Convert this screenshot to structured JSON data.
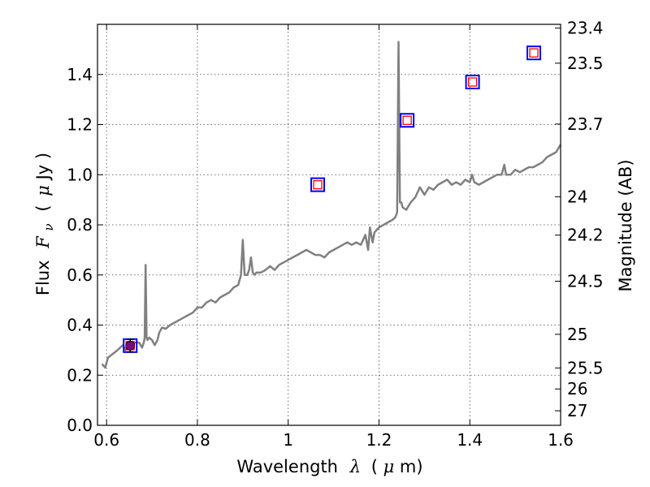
{
  "chart_data": {
    "type": "line",
    "xlabel": {
      "prefix": "Wavelength",
      "symbol": "λ",
      "unit_open": "(",
      "unit_mu": "μ",
      "unit_rest": "m)"
    },
    "ylabel": {
      "prefix": "Flux",
      "symbol": "F",
      "sub": "ν",
      "unit_open": "(",
      "unit_mu": "μ",
      "unit_rest": "Jy )"
    },
    "y2label": "Magnitude (AB)",
    "xlim": [
      0.58,
      1.6
    ],
    "ylim": [
      0.0,
      1.6
    ],
    "grid": true,
    "x_ticks": [
      {
        "value": 0.6,
        "label": "0.6"
      },
      {
        "value": 0.8,
        "label": "0.8"
      },
      {
        "value": 1.0,
        "label": "1"
      },
      {
        "value": 1.2,
        "label": "1.2"
      },
      {
        "value": 1.4,
        "label": "1.4"
      },
      {
        "value": 1.6,
        "label": "1.6"
      }
    ],
    "y_ticks": [
      {
        "value": 0.0,
        "label": "0.0"
      },
      {
        "value": 0.2,
        "label": "0.2"
      },
      {
        "value": 0.4,
        "label": "0.4"
      },
      {
        "value": 0.6,
        "label": "0.6"
      },
      {
        "value": 0.8,
        "label": "0.8"
      },
      {
        "value": 1.0,
        "label": "1.0"
      },
      {
        "value": 1.2,
        "label": "1.2"
      },
      {
        "value": 1.4,
        "label": "1.4"
      }
    ],
    "y2_ticks": [
      {
        "label": "23.4",
        "flux": 1.585
      },
      {
        "label": "23.5",
        "flux": 1.445
      },
      {
        "label": "23.7",
        "flux": 1.202
      },
      {
        "label": "24",
        "flux": 0.912
      },
      {
        "label": "24.2",
        "flux": 0.759
      },
      {
        "label": "24.5",
        "flux": 0.575
      },
      {
        "label": "25",
        "flux": 0.363
      },
      {
        "label": "25.5",
        "flux": 0.229
      },
      {
        "label": "26",
        "flux": 0.145
      },
      {
        "label": "27",
        "flux": 0.058
      }
    ],
    "series": [
      {
        "kind": "spectrum",
        "color": "#808080",
        "x": [
          0.59,
          0.597,
          0.603,
          0.61,
          0.617,
          0.624,
          0.63,
          0.636,
          0.642,
          0.65,
          0.658,
          0.665,
          0.672,
          0.678,
          0.682,
          0.684,
          0.686,
          0.688,
          0.69,
          0.694,
          0.7,
          0.706,
          0.712,
          0.716,
          0.722,
          0.73,
          0.74,
          0.75,
          0.76,
          0.77,
          0.78,
          0.79,
          0.8,
          0.81,
          0.82,
          0.83,
          0.84,
          0.85,
          0.86,
          0.87,
          0.88,
          0.89,
          0.896,
          0.9,
          0.904,
          0.91,
          0.914,
          0.918,
          0.922,
          0.926,
          0.93,
          0.94,
          0.95,
          0.96,
          0.97,
          0.98,
          0.99,
          1.0,
          1.01,
          1.02,
          1.03,
          1.04,
          1.05,
          1.06,
          1.07,
          1.08,
          1.09,
          1.1,
          1.11,
          1.12,
          1.13,
          1.14,
          1.15,
          1.16,
          1.17,
          1.176,
          1.18,
          1.186,
          1.19,
          1.2,
          1.21,
          1.22,
          1.23,
          1.236,
          1.24,
          1.243,
          1.246,
          1.249,
          1.252,
          1.26,
          1.27,
          1.28,
          1.29,
          1.3,
          1.31,
          1.32,
          1.33,
          1.34,
          1.35,
          1.36,
          1.37,
          1.38,
          1.39,
          1.4,
          1.405,
          1.41,
          1.42,
          1.43,
          1.44,
          1.45,
          1.46,
          1.47,
          1.476,
          1.48,
          1.49,
          1.5,
          1.51,
          1.52,
          1.53,
          1.54,
          1.55,
          1.56,
          1.57,
          1.58,
          1.59,
          1.6
        ],
        "y": [
          0.245,
          0.23,
          0.27,
          0.28,
          0.29,
          0.3,
          0.31,
          0.32,
          0.3,
          0.315,
          0.33,
          0.33,
          0.33,
          0.31,
          0.33,
          0.35,
          0.64,
          0.35,
          0.34,
          0.35,
          0.34,
          0.32,
          0.34,
          0.37,
          0.39,
          0.385,
          0.4,
          0.41,
          0.42,
          0.43,
          0.44,
          0.45,
          0.47,
          0.47,
          0.49,
          0.5,
          0.49,
          0.51,
          0.52,
          0.53,
          0.55,
          0.56,
          0.6,
          0.74,
          0.6,
          0.6,
          0.62,
          0.67,
          0.61,
          0.6,
          0.61,
          0.61,
          0.62,
          0.635,
          0.62,
          0.64,
          0.65,
          0.66,
          0.67,
          0.68,
          0.69,
          0.7,
          0.69,
          0.68,
          0.68,
          0.67,
          0.69,
          0.7,
          0.71,
          0.72,
          0.73,
          0.72,
          0.73,
          0.72,
          0.76,
          0.7,
          0.79,
          0.73,
          0.77,
          0.79,
          0.8,
          0.81,
          0.82,
          0.83,
          0.85,
          1.53,
          0.89,
          0.89,
          0.87,
          0.86,
          0.89,
          0.91,
          0.95,
          0.92,
          0.95,
          0.94,
          0.96,
          0.97,
          0.98,
          0.96,
          0.97,
          0.96,
          0.98,
          0.97,
          1.0,
          0.97,
          0.96,
          0.97,
          0.98,
          0.99,
          1.0,
          1.0,
          1.04,
          1.0,
          1.0,
          1.02,
          1.01,
          1.02,
          1.03,
          1.03,
          1.04,
          1.05,
          1.07,
          1.08,
          1.09,
          1.12
        ]
      },
      {
        "kind": "observed",
        "marker": "square",
        "color": "#0000ff",
        "x": [
          0.652,
          1.065,
          1.262,
          1.406,
          1.541
        ],
        "y": [
          0.318,
          0.96,
          1.217,
          1.37,
          1.486
        ]
      },
      {
        "kind": "model",
        "marker": "square",
        "color": "#ff0000",
        "x": [
          0.652,
          1.065,
          1.262,
          1.406,
          1.541
        ],
        "y": [
          0.318,
          0.96,
          1.217,
          1.37,
          1.486
        ]
      },
      {
        "kind": "measurement",
        "marker": "circle",
        "color": "#800080",
        "x": [
          0.652
        ],
        "y": [
          0.318
        ],
        "yerr": [
          0.025
        ]
      }
    ]
  }
}
